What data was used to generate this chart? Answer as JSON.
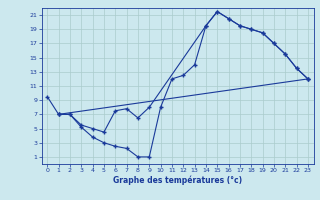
{
  "xlabel": "Graphe des températures (°c)",
  "xlim": [
    -0.5,
    23.5
  ],
  "ylim": [
    0,
    22
  ],
  "xticks": [
    0,
    1,
    2,
    3,
    4,
    5,
    6,
    7,
    8,
    9,
    10,
    11,
    12,
    13,
    14,
    15,
    16,
    17,
    18,
    19,
    20,
    21,
    22,
    23
  ],
  "yticks": [
    1,
    3,
    5,
    7,
    9,
    11,
    13,
    15,
    17,
    19,
    21
  ],
  "bg_color": "#cce8ee",
  "grid_color": "#aacccc",
  "line_color": "#1a3a9a",
  "curve1_x": [
    0,
    1,
    2,
    3,
    4,
    5,
    6,
    7,
    8,
    9,
    10,
    11,
    12,
    13,
    14,
    15,
    16,
    17,
    18,
    19,
    20,
    21,
    22,
    23
  ],
  "curve1_y": [
    9.5,
    7.0,
    7.0,
    5.2,
    3.8,
    3.0,
    2.5,
    2.2,
    1.0,
    1.0,
    8.0,
    12.0,
    12.5,
    14.0,
    19.5,
    21.5,
    20.5,
    19.5,
    19.0,
    18.5,
    17.0,
    15.5,
    13.5,
    12.0
  ],
  "curve2_x": [
    1,
    2,
    3,
    4,
    5,
    6,
    7,
    8,
    9,
    14,
    15,
    16,
    17,
    18,
    19,
    20,
    21,
    22,
    23
  ],
  "curve2_y": [
    7.0,
    7.0,
    5.5,
    5.0,
    4.5,
    7.5,
    7.8,
    6.5,
    8.0,
    19.5,
    21.5,
    20.5,
    19.5,
    19.0,
    18.5,
    17.0,
    15.5,
    13.5,
    12.0
  ],
  "curve3_x": [
    1,
    23
  ],
  "curve3_y": [
    7.0,
    12.0
  ]
}
